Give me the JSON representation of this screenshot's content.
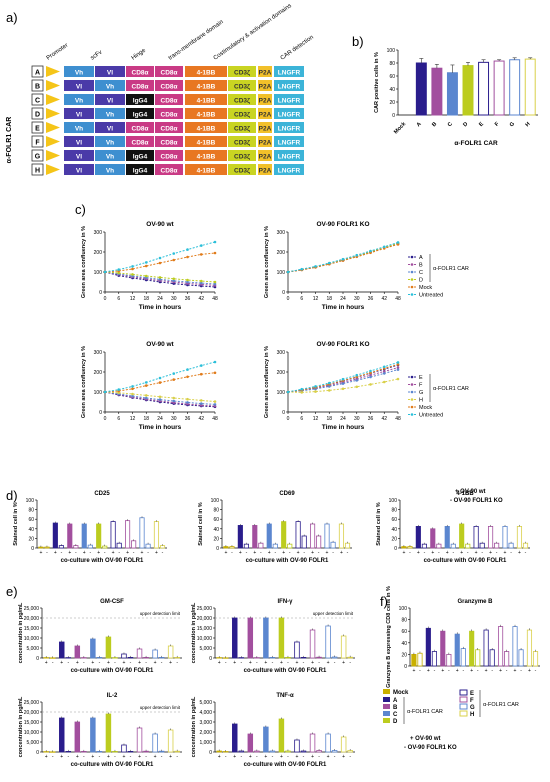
{
  "colors": {
    "A": "#2a1d8c",
    "B": "#a24f9e",
    "C": "#5b86cf",
    "D": "#bccc1f",
    "E": "#2a1d8c",
    "F": "#a24f9e",
    "G": "#5b86cf",
    "H": "#d9d04a",
    "Mock": "#e07b1a",
    "Untreated": "#2bbfd9",
    "Vh": "#3e8fd0",
    "Vl": "#4a3aa8",
    "CD8a": "#c93a85",
    "IgG4": "#111111",
    "BB": "#e87722",
    "CD3z": "#c9d422",
    "P2A": "#f2c02a",
    "LNGFR": "#3cb4d8",
    "promoter": "#f5c518"
  },
  "panel_a": {
    "label": "a)",
    "headers": [
      "Promoter",
      "scFv",
      "Hinge",
      "trans-membrane domain",
      "Costimulatory & activation domains",
      "CAR detection"
    ],
    "side_label": "α-FOLR1 CAR",
    "rows": [
      {
        "id": "A",
        "scfv1": "Vh",
        "scfv2": "Vl",
        "hinge": "CD8α",
        "tm": "CD8α"
      },
      {
        "id": "B",
        "scfv1": "Vl",
        "scfv2": "Vh",
        "hinge": "CD8α",
        "tm": "CD8α"
      },
      {
        "id": "C",
        "scfv1": "Vh",
        "scfv2": "Vl",
        "hinge": "IgG4",
        "tm": "CD8α"
      },
      {
        "id": "D",
        "scfv1": "Vl",
        "scfv2": "Vh",
        "hinge": "IgG4",
        "tm": "CD8α"
      },
      {
        "id": "E",
        "scfv1": "Vh",
        "scfv2": "Vl",
        "hinge": "CD8α",
        "tm": "CD8α"
      },
      {
        "id": "F",
        "scfv1": "Vl",
        "scfv2": "Vh",
        "hinge": "CD8α",
        "tm": "CD8α"
      },
      {
        "id": "G",
        "scfv1": "Vl",
        "scfv2": "Vh",
        "hinge": "IgG4",
        "tm": "CD8α"
      },
      {
        "id": "H",
        "scfv1": "Vl",
        "scfv2": "Vh",
        "hinge": "IgG4",
        "tm": "CD8α"
      }
    ],
    "costim": "4-1BB",
    "activation": "CD3ζ",
    "p2a": "P2A",
    "detection": "LNGFR"
  },
  "chart_data": [
    {
      "panel": "b)",
      "type": "bar",
      "title": "",
      "ylabel": "CAR positive cells in %",
      "xlabel": "α-FOLR1 CAR",
      "ylim": [
        0,
        100
      ],
      "yticks": [
        0,
        20,
        40,
        60,
        80,
        100
      ],
      "categories": [
        "Mock",
        "A",
        "B",
        "C",
        "D",
        "E",
        "F",
        "G",
        "H"
      ],
      "values": [
        0,
        80,
        72,
        65,
        76,
        81,
        83,
        85,
        86
      ],
      "errors": [
        0,
        7,
        6,
        12,
        5,
        4,
        2,
        3,
        2
      ]
    },
    {
      "panel": "c)",
      "type": "line",
      "title": "OV-90 wt",
      "xlabel": "Time in hours",
      "ylabel": "Green area confluency in %",
      "ylim": [
        0,
        300
      ],
      "yticks": [
        0,
        100,
        200,
        300
      ],
      "x": [
        0,
        6,
        12,
        18,
        24,
        30,
        36,
        42,
        48
      ],
      "series": [
        {
          "name": "A",
          "values": [
            100,
            82,
            70,
            60,
            50,
            42,
            35,
            30,
            25
          ]
        },
        {
          "name": "B",
          "values": [
            100,
            88,
            76,
            66,
            57,
            50,
            43,
            38,
            33
          ]
        },
        {
          "name": "C",
          "values": [
            100,
            90,
            80,
            72,
            63,
            56,
            50,
            45,
            40
          ]
        },
        {
          "name": "D",
          "values": [
            100,
            95,
            88,
            80,
            73,
            66,
            60,
            55,
            50
          ]
        },
        {
          "name": "Mock",
          "values": [
            100,
            105,
            115,
            130,
            145,
            160,
            175,
            188,
            195
          ]
        },
        {
          "name": "Untreated",
          "values": [
            100,
            112,
            128,
            148,
            170,
            192,
            212,
            232,
            250
          ]
        }
      ]
    },
    {
      "panel": "c)",
      "type": "line",
      "title": "OV-90 FOLR1 KO",
      "xlabel": "Time in hours",
      "ylabel": "Green area confluency in %",
      "ylim": [
        0,
        300
      ],
      "yticks": [
        0,
        100,
        200,
        300
      ],
      "x": [
        0,
        6,
        12,
        18,
        24,
        30,
        36,
        42,
        48
      ],
      "series": [
        {
          "name": "A",
          "values": [
            100,
            112,
            125,
            142,
            160,
            180,
            200,
            222,
            242
          ]
        },
        {
          "name": "B",
          "values": [
            100,
            111,
            124,
            140,
            158,
            177,
            198,
            220,
            240
          ]
        },
        {
          "name": "C",
          "values": [
            100,
            113,
            126,
            143,
            162,
            182,
            203,
            224,
            245
          ]
        },
        {
          "name": "D",
          "values": [
            100,
            112,
            125,
            141,
            159,
            179,
            200,
            221,
            243
          ]
        },
        {
          "name": "Mock",
          "values": [
            100,
            110,
            123,
            139,
            157,
            176,
            196,
            218,
            238
          ]
        },
        {
          "name": "Untreated",
          "values": [
            100,
            114,
            128,
            145,
            164,
            184,
            205,
            226,
            248
          ]
        }
      ]
    },
    {
      "panel": "c)",
      "type": "line",
      "title": "OV-90 wt",
      "xlabel": "Time in hours",
      "ylabel": "Green area confluency in %",
      "ylim": [
        0,
        300
      ],
      "yticks": [
        0,
        100,
        200,
        300
      ],
      "x": [
        0,
        6,
        12,
        18,
        24,
        30,
        36,
        42,
        48
      ],
      "series": [
        {
          "name": "E",
          "values": [
            100,
            85,
            72,
            60,
            50,
            42,
            35,
            30,
            26
          ]
        },
        {
          "name": "F",
          "values": [
            100,
            88,
            75,
            64,
            55,
            47,
            40,
            34,
            30
          ]
        },
        {
          "name": "G",
          "values": [
            100,
            90,
            80,
            70,
            62,
            55,
            48,
            42,
            38
          ]
        },
        {
          "name": "H",
          "values": [
            100,
            96,
            90,
            83,
            76,
            70,
            64,
            58,
            52
          ]
        },
        {
          "name": "Mock",
          "values": [
            100,
            105,
            116,
            132,
            147,
            162,
            176,
            189,
            196
          ]
        },
        {
          "name": "Untreated",
          "values": [
            100,
            112,
            128,
            148,
            170,
            192,
            212,
            232,
            250
          ]
        }
      ]
    },
    {
      "panel": "c)",
      "type": "line",
      "title": "OV-90 FOLR1 KO",
      "xlabel": "Time in hours",
      "ylabel": "Green area confluency in %",
      "ylim": [
        0,
        300
      ],
      "yticks": [
        0,
        100,
        200,
        300
      ],
      "x": [
        0,
        6,
        12,
        18,
        24,
        30,
        36,
        42,
        48
      ],
      "series": [
        {
          "name": "E",
          "values": [
            100,
            110,
            122,
            138,
            155,
            174,
            194,
            214,
            235
          ]
        },
        {
          "name": "F",
          "values": [
            100,
            108,
            118,
            132,
            148,
            165,
            184,
            203,
            222
          ]
        },
        {
          "name": "G",
          "values": [
            100,
            106,
            115,
            128,
            142,
            158,
            175,
            193,
            212
          ]
        },
        {
          "name": "H",
          "values": [
            100,
            98,
            102,
            108,
            116,
            126,
            138,
            150,
            165
          ]
        },
        {
          "name": "Mock",
          "values": [
            100,
            110,
            123,
            139,
            157,
            176,
            196,
            218,
            238
          ]
        },
        {
          "name": "Untreated",
          "values": [
            100,
            114,
            128,
            145,
            164,
            184,
            205,
            226,
            248
          ]
        }
      ]
    },
    {
      "panel": "d)",
      "type": "bar",
      "title": "CD25",
      "ylabel": "Stained cell in %",
      "xlabel": "co-culture with OV-90 FOLR1",
      "ylim": [
        0,
        100
      ],
      "yticks": [
        0,
        20,
        40,
        60,
        80,
        100
      ],
      "categories": [
        "Mock",
        "A",
        "B",
        "C",
        "D",
        "E",
        "F",
        "G",
        "H"
      ],
      "wt": [
        2,
        52,
        50,
        50,
        50,
        55,
        57,
        63,
        55
      ],
      "ko": [
        2,
        5,
        5,
        6,
        4,
        10,
        15,
        8,
        5
      ]
    },
    {
      "panel": "d)",
      "type": "bar",
      "title": "CD69",
      "ylabel": "Stained cell in %",
      "xlabel": "co-culture with OV-90 FOLR1",
      "ylim": [
        0,
        100
      ],
      "yticks": [
        0,
        20,
        40,
        60,
        80,
        100
      ],
      "categories": [
        "Mock",
        "A",
        "B",
        "C",
        "D",
        "E",
        "F",
        "G",
        "H"
      ],
      "wt": [
        3,
        47,
        47,
        50,
        55,
        55,
        50,
        50,
        50
      ],
      "ko": [
        3,
        8,
        10,
        8,
        8,
        25,
        25,
        12,
        10
      ]
    },
    {
      "panel": "d)",
      "type": "bar",
      "title": "4-1BB",
      "ylabel": "Stained cell in %",
      "xlabel": "co-culture with OV-90 FOLR1",
      "ylim": [
        0,
        100
      ],
      "yticks": [
        0,
        20,
        40,
        60,
        80,
        100
      ],
      "categories": [
        "Mock",
        "A",
        "B",
        "C",
        "D",
        "E",
        "F",
        "G",
        "H"
      ],
      "wt": [
        3,
        45,
        40,
        45,
        50,
        45,
        45,
        45,
        45
      ],
      "ko": [
        3,
        8,
        8,
        8,
        8,
        10,
        10,
        10,
        10
      ]
    },
    {
      "panel": "e)",
      "type": "bar",
      "title": "GM-CSF",
      "ylabel": "concentration in pg/mL",
      "xlabel": "co-culture with OV-90 FOLR1",
      "ylim": [
        0,
        25000
      ],
      "yticks": [
        0,
        5000,
        10000,
        15000,
        20000,
        25000
      ],
      "limit": 20000,
      "limit_label": "upper detection limit",
      "categories": [
        "Mock",
        "A",
        "B",
        "C",
        "D",
        "E",
        "F",
        "G",
        "H"
      ],
      "wt": [
        200,
        8000,
        6000,
        9500,
        10500,
        2000,
        4500,
        4000,
        6000
      ],
      "ko": [
        100,
        200,
        200,
        300,
        200,
        300,
        300,
        300,
        300
      ]
    },
    {
      "panel": "e)",
      "type": "bar",
      "title": "IFN-γ",
      "ylabel": "concentration in pg/mL",
      "xlabel": "co-culture with OV-90 FOLR1",
      "ylim": [
        0,
        25000
      ],
      "yticks": [
        0,
        5000,
        10000,
        15000,
        20000,
        25000
      ],
      "limit": 20000,
      "limit_label": "upper detection limit",
      "categories": [
        "Mock",
        "A",
        "B",
        "C",
        "D",
        "E",
        "F",
        "G",
        "H"
      ],
      "wt": [
        200,
        20000,
        20000,
        20000,
        20000,
        8000,
        14000,
        16000,
        11000
      ],
      "ko": [
        100,
        200,
        200,
        300,
        300,
        300,
        400,
        500,
        400
      ]
    },
    {
      "panel": "e)",
      "type": "bar",
      "title": "IL-2",
      "ylabel": "concentration in pg/mL",
      "xlabel": "co-culture with OV-90 FOLR1",
      "ylim": [
        0,
        25000
      ],
      "yticks": [
        0,
        5000,
        10000,
        15000,
        20000,
        25000
      ],
      "limit": 20000,
      "limit_label": "upper detection limit",
      "categories": [
        "Mock",
        "A",
        "B",
        "C",
        "D",
        "E",
        "F",
        "G",
        "H"
      ],
      "wt": [
        200,
        17000,
        15000,
        17000,
        19000,
        3500,
        12000,
        9000,
        11000
      ],
      "ko": [
        100,
        300,
        300,
        300,
        300,
        300,
        400,
        400,
        400
      ]
    },
    {
      "panel": "e)",
      "type": "bar",
      "title": "TNF-α",
      "ylabel": "concentration in pg/mL",
      "xlabel": "co-culture with OV-90 FOLR1",
      "ylim": [
        0,
        5000
      ],
      "yticks": [
        0,
        1000,
        2000,
        3000,
        4000,
        5000
      ],
      "categories": [
        "Mock",
        "A",
        "B",
        "C",
        "D",
        "E",
        "F",
        "G",
        "H"
      ],
      "wt": [
        100,
        2800,
        1800,
        2500,
        3300,
        1200,
        1800,
        1800,
        1500
      ],
      "ko": [
        50,
        100,
        100,
        100,
        100,
        100,
        150,
        150,
        150
      ]
    },
    {
      "panel": "f)",
      "type": "bar",
      "title": "Granzyme B",
      "ylabel": "Granzyme B expressing CD8 cells in %",
      "xlabel": "",
      "ylim": [
        0,
        100
      ],
      "yticks": [
        0,
        20,
        40,
        60,
        80,
        100
      ],
      "categories": [
        "Mock",
        "A",
        "B",
        "C",
        "D",
        "E",
        "F",
        "G",
        "H"
      ],
      "wt": [
        20,
        65,
        60,
        55,
        60,
        62,
        68,
        68,
        62
      ],
      "ko": [
        22,
        25,
        20,
        30,
        28,
        28,
        25,
        28,
        25
      ]
    }
  ],
  "legends": {
    "c_top": {
      "items": [
        "A",
        "B",
        "C",
        "D",
        "Mock",
        "Untreated"
      ],
      "car_label": "α-FOLR1 CAR"
    },
    "c_bottom": {
      "items": [
        "E",
        "F",
        "G",
        "H",
        "Mock",
        "Untreated"
      ],
      "car_label": "α-FOLR1 CAR"
    },
    "d": {
      "plus": "+ OV-90 wt",
      "minus": "- OV-90 FOLR1 KO"
    },
    "f": {
      "mock": "Mock",
      "left": [
        "A",
        "B",
        "C",
        "D"
      ],
      "right": [
        "E",
        "F",
        "G",
        "H"
      ],
      "car_label": "α-FOLR1 CAR",
      "plus": "+ OV-90 wt",
      "minus": "- OV-90 FOLR1 KO"
    }
  },
  "panel_labels": {
    "c": "c)",
    "d": "d)",
    "e": "e)",
    "f": "f)"
  }
}
